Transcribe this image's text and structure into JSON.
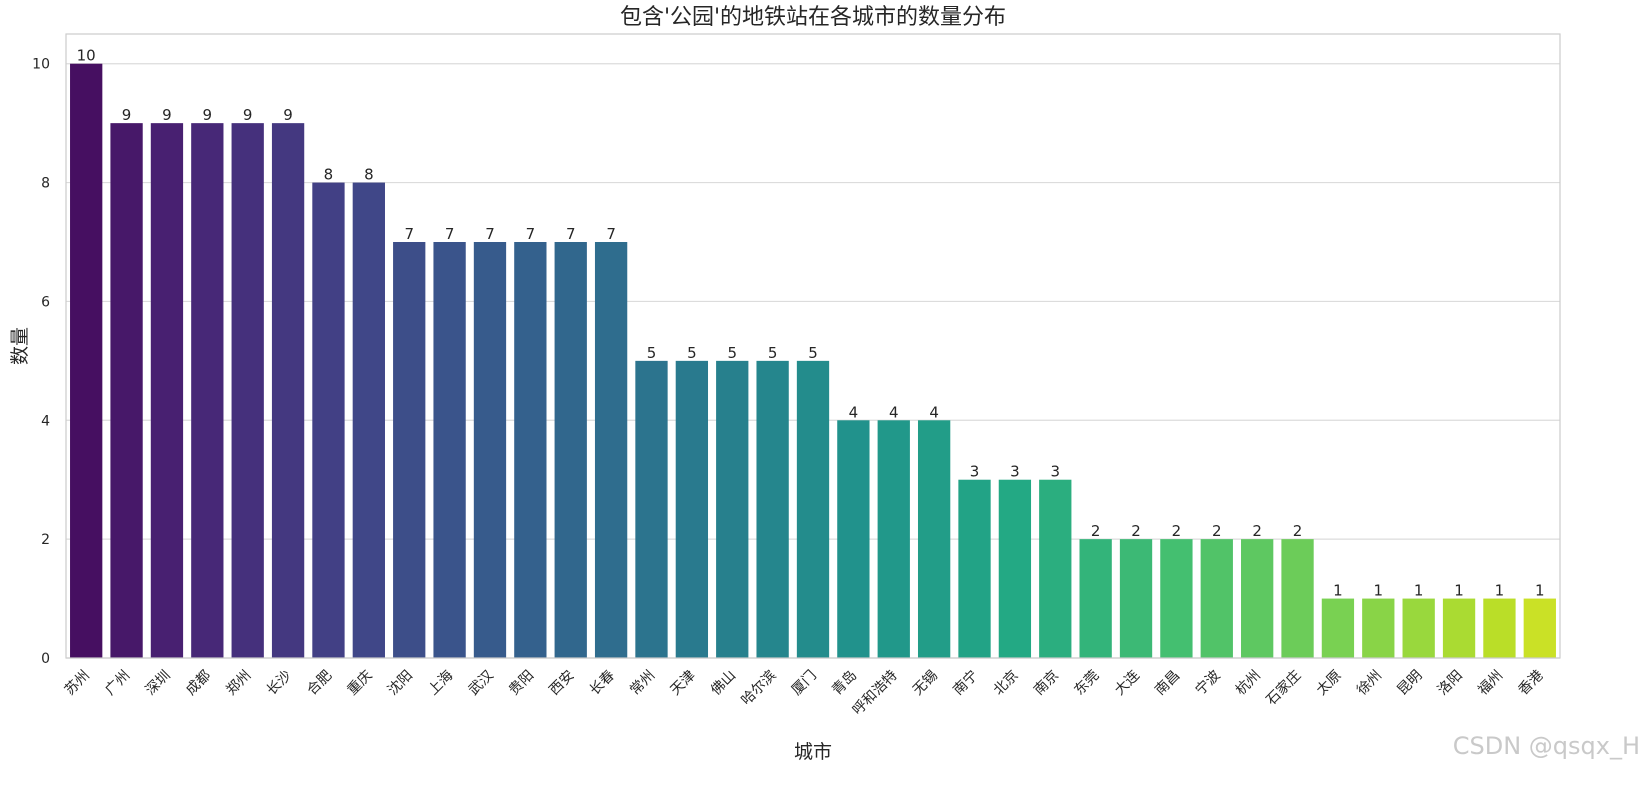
{
  "chart_data": {
    "type": "bar",
    "title": "包含'公园'的地铁站在各城市的数量分布",
    "xlabel": "城市",
    "ylabel": "数量",
    "categories": [
      "苏州",
      "广州",
      "深圳",
      "成都",
      "郑州",
      "长沙",
      "合肥",
      "重庆",
      "沈阳",
      "上海",
      "武汉",
      "贵阳",
      "西安",
      "长春",
      "常州",
      "天津",
      "佛山",
      "哈尔滨",
      "厦门",
      "青岛",
      "呼和浩特",
      "无锡",
      "南宁",
      "北京",
      "南京",
      "东莞",
      "大连",
      "南昌",
      "宁波",
      "杭州",
      "石家庄",
      "太原",
      "徐州",
      "昆明",
      "洛阳",
      "福州",
      "香港"
    ],
    "values": [
      10,
      9,
      9,
      9,
      9,
      9,
      8,
      8,
      7,
      7,
      7,
      7,
      7,
      7,
      5,
      5,
      5,
      5,
      5,
      4,
      4,
      4,
      3,
      3,
      3,
      2,
      2,
      2,
      2,
      2,
      2,
      1,
      1,
      1,
      1,
      1,
      1
    ],
    "ylim": [
      0,
      10.5
    ],
    "yticks": [
      0,
      2,
      4,
      6,
      8,
      10
    ],
    "grid": true,
    "palette": "viridis"
  },
  "watermark": "CSDN @qsqx_H"
}
